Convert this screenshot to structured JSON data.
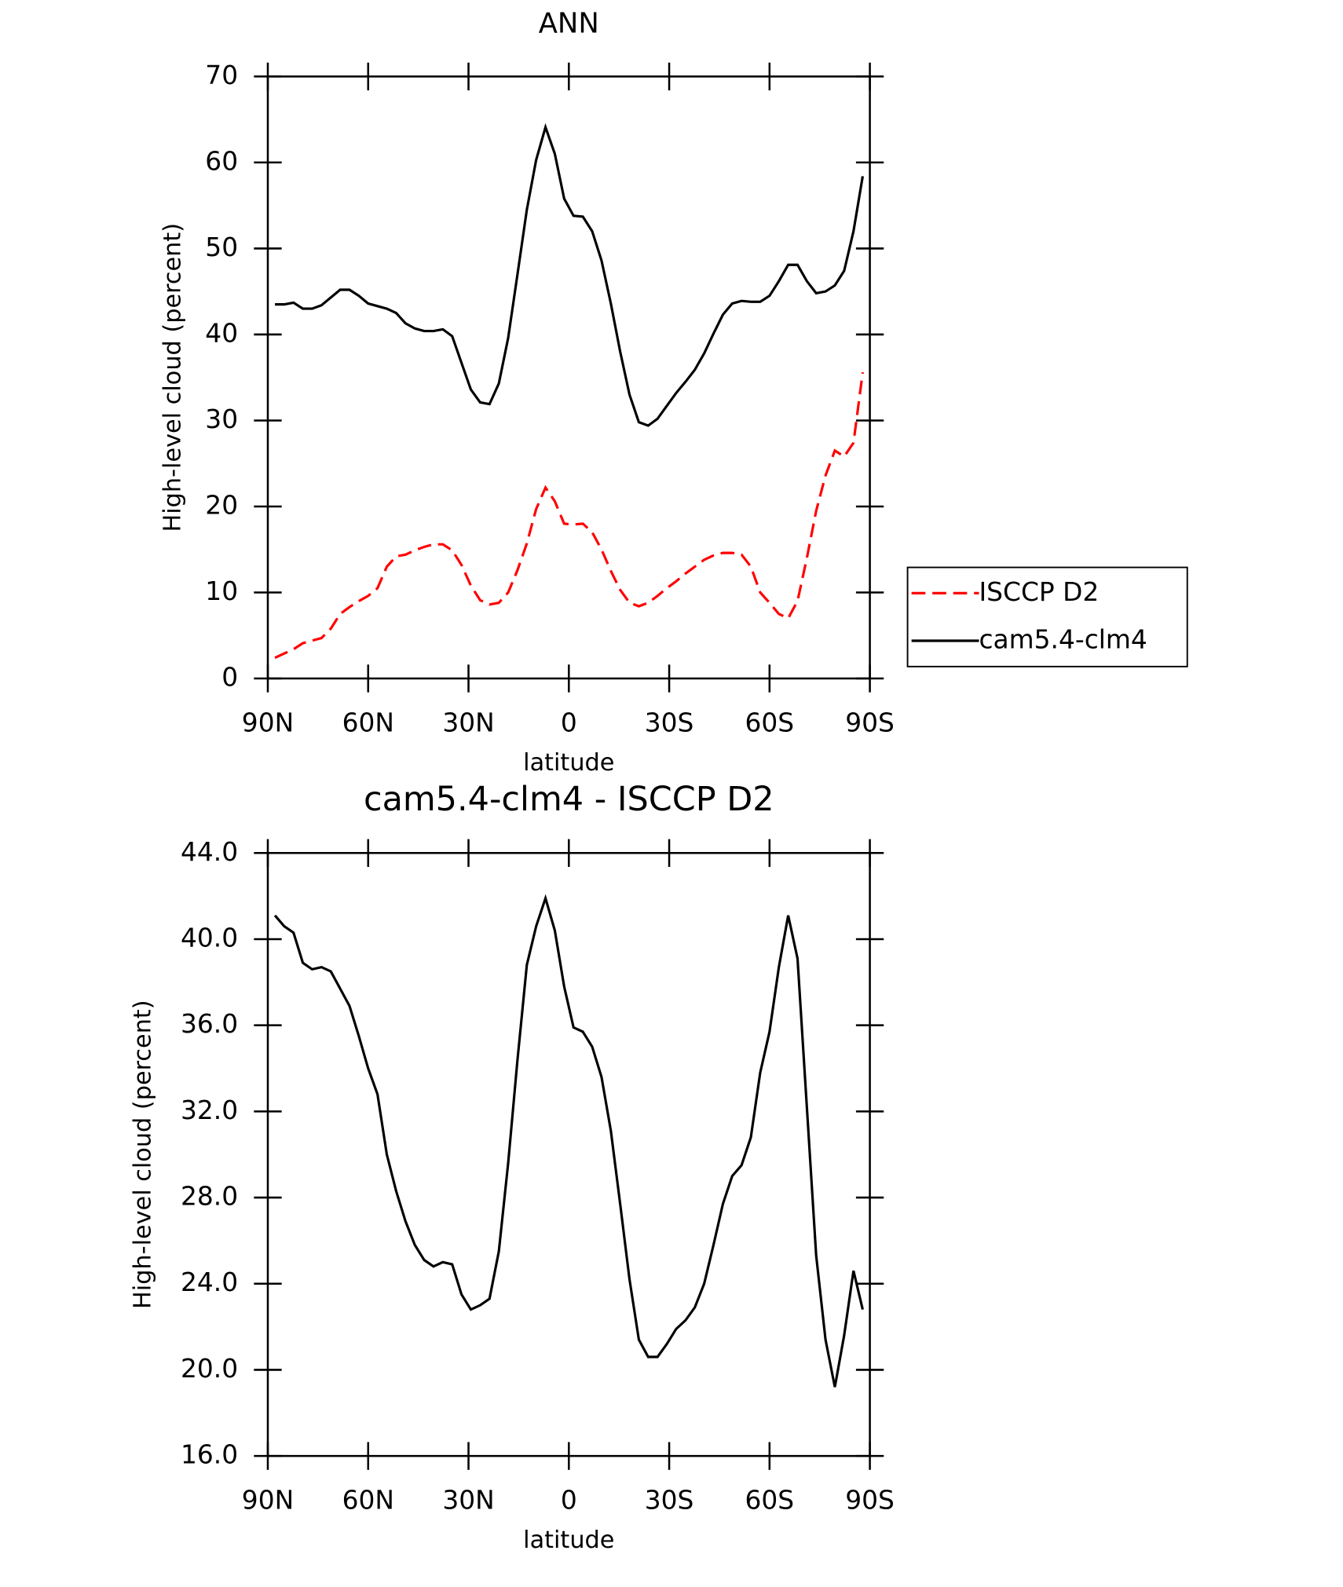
{
  "chart_data": [
    {
      "type": "line",
      "title": "ANN",
      "x_label": "latitude",
      "y_label": "High-level cloud (percent)",
      "x": [
        87.86,
        85.1,
        82.31,
        79.53,
        76.74,
        73.95,
        71.16,
        68.37,
        65.58,
        62.79,
        60.0,
        57.21,
        54.42,
        51.63,
        48.84,
        46.05,
        43.25,
        40.46,
        37.67,
        34.88,
        32.09,
        29.3,
        26.51,
        23.72,
        20.93,
        18.14,
        15.35,
        12.56,
        9.77,
        6.98,
        4.19,
        1.4,
        -1.4,
        -4.19,
        -6.98,
        -9.77,
        -12.56,
        -15.35,
        -18.14,
        -20.93,
        -23.72,
        -26.51,
        -29.3,
        -32.09,
        -34.88,
        -37.67,
        -40.46,
        -43.25,
        -46.05,
        -48.84,
        -51.63,
        -54.42,
        -57.21,
        -60.0,
        -62.79,
        -65.58,
        -68.37,
        -71.16,
        -73.95,
        -76.74,
        -79.53,
        -82.31,
        -85.1,
        -87.86
      ],
      "xlim": [
        90,
        -90
      ],
      "xticks": [
        {
          "value": 90,
          "label": "90N"
        },
        {
          "value": 60,
          "label": "60N"
        },
        {
          "value": 30,
          "label": "30N"
        },
        0,
        {
          "value": -30,
          "label": "30S"
        },
        {
          "value": -60,
          "label": "60S"
        },
        {
          "value": -90,
          "label": "90S"
        }
      ],
      "ylim": [
        0,
        70
      ],
      "yticks": [
        0,
        10,
        20,
        30,
        40,
        50,
        60,
        70
      ],
      "grid": false,
      "legend": "right",
      "series": [
        {
          "name": "ISCCP D2",
          "color": "#ff0000",
          "line_style": "dashed",
          "values": [
            2.4,
            2.9,
            3.4,
            4.1,
            4.4,
            4.7,
            5.8,
            7.5,
            8.3,
            9.0,
            9.6,
            10.5,
            13.0,
            14.2,
            14.4,
            14.9,
            15.3,
            15.6,
            15.6,
            14.9,
            13.2,
            10.8,
            9.1,
            8.6,
            8.8,
            10.0,
            12.6,
            15.7,
            19.7,
            22.2,
            20.6,
            18.0,
            17.9,
            18.0,
            17.0,
            15.0,
            12.5,
            10.3,
            8.8,
            8.4,
            8.8,
            9.6,
            10.5,
            11.3,
            12.2,
            13.0,
            13.8,
            14.3,
            14.6,
            14.6,
            14.4,
            13.0,
            10.0,
            8.8,
            7.5,
            7.0,
            9.0,
            14.0,
            19.5,
            23.6,
            26.5,
            25.8,
            27.4,
            35.6
          ]
        },
        {
          "name": "cam5.4-clm4",
          "color": "#000000",
          "line_style": "solid",
          "values": [
            43.5,
            43.5,
            43.7,
            43.0,
            43.0,
            43.4,
            44.3,
            45.2,
            45.2,
            44.5,
            43.6,
            43.3,
            43.0,
            42.5,
            41.3,
            40.7,
            40.4,
            40.4,
            40.6,
            39.8,
            36.7,
            33.6,
            32.1,
            31.9,
            34.3,
            39.6,
            47.0,
            54.5,
            60.3,
            64.1,
            61.0,
            55.8,
            53.8,
            53.7,
            52.0,
            48.6,
            43.6,
            38.0,
            33.0,
            29.8,
            29.4,
            30.2,
            31.7,
            33.2,
            34.5,
            35.9,
            37.8,
            40.1,
            42.3,
            43.6,
            43.9,
            43.8,
            43.8,
            44.5,
            46.2,
            48.1,
            48.1,
            46.2,
            44.8,
            45.0,
            45.7,
            47.4,
            52.0,
            58.4
          ]
        }
      ]
    },
    {
      "type": "line",
      "title": "cam5.4-clm4 - ISCCP D2",
      "x_label": "latitude",
      "y_label": "High-level cloud (percent)",
      "x": [
        87.86,
        85.1,
        82.31,
        79.53,
        76.74,
        73.95,
        71.16,
        68.37,
        65.58,
        62.79,
        60.0,
        57.21,
        54.42,
        51.63,
        48.84,
        46.05,
        43.25,
        40.46,
        37.67,
        34.88,
        32.09,
        29.3,
        26.51,
        23.72,
        20.93,
        18.14,
        15.35,
        12.56,
        9.77,
        6.98,
        4.19,
        1.4,
        -1.4,
        -4.19,
        -6.98,
        -9.77,
        -12.56,
        -15.35,
        -18.14,
        -20.93,
        -23.72,
        -26.51,
        -29.3,
        -32.09,
        -34.88,
        -37.67,
        -40.46,
        -43.25,
        -46.05,
        -48.84,
        -51.63,
        -54.42,
        -57.21,
        -60.0,
        -62.79,
        -65.58,
        -68.37,
        -71.16,
        -73.95,
        -76.74,
        -79.53,
        -82.31,
        -85.1,
        -87.86
      ],
      "xlim": [
        90,
        -90
      ],
      "xticks": [
        {
          "value": 90,
          "label": "90N"
        },
        {
          "value": 60,
          "label": "60N"
        },
        {
          "value": 30,
          "label": "30N"
        },
        0,
        {
          "value": -30,
          "label": "30S"
        },
        {
          "value": -60,
          "label": "60S"
        },
        {
          "value": -90,
          "label": "90S"
        }
      ],
      "ylim": [
        16,
        44
      ],
      "yticks": [
        {
          "value": 16,
          "label": "16.0"
        },
        {
          "value": 20,
          "label": "20.0"
        },
        {
          "value": 24,
          "label": "24.0"
        },
        {
          "value": 28,
          "label": "28.0"
        },
        {
          "value": 32,
          "label": "32.0"
        },
        {
          "value": 36,
          "label": "36.0"
        },
        {
          "value": 40,
          "label": "40.0"
        },
        {
          "value": 44,
          "label": "44.0"
        }
      ],
      "grid": false,
      "color": "#000000",
      "values": [
        41.1,
        40.6,
        40.3,
        38.9,
        38.6,
        38.7,
        38.5,
        37.7,
        36.9,
        35.5,
        34.0,
        32.8,
        30.0,
        28.3,
        26.9,
        25.8,
        25.1,
        24.8,
        25.0,
        24.9,
        23.5,
        22.8,
        23.0,
        23.3,
        25.5,
        29.6,
        34.4,
        38.8,
        40.6,
        41.9,
        40.4,
        37.8,
        35.9,
        35.7,
        35.0,
        33.6,
        31.1,
        27.7,
        24.2,
        21.4,
        20.6,
        20.6,
        21.2,
        21.9,
        22.3,
        22.9,
        24.0,
        25.8,
        27.7,
        29.0,
        29.5,
        30.8,
        33.8,
        35.7,
        38.7,
        41.1,
        39.1,
        32.2,
        25.3,
        21.4,
        19.2,
        21.6,
        24.6,
        22.8
      ]
    }
  ]
}
